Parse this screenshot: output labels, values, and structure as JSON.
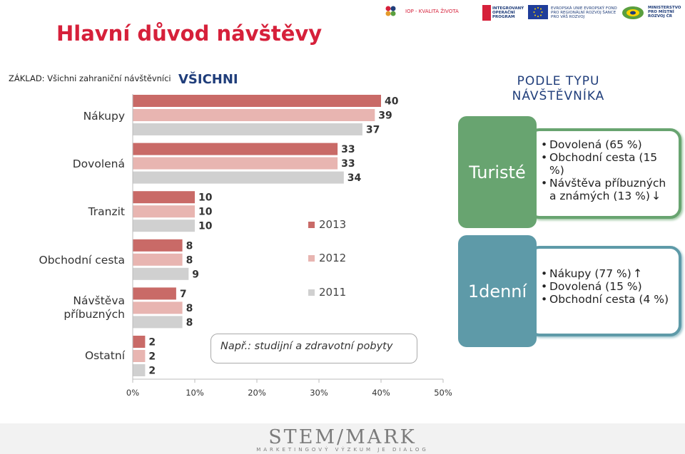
{
  "page": {
    "title": "Hlavní důvod návštěvy",
    "basis": "ZÁKLAD: Všichni zahraniční návštěvníci",
    "section_all": "VŠICHNI",
    "note": "Např.: studijní a zdravotní pobyty",
    "logos": {
      "iop": "IOP - KVALITA ŽIVOTA",
      "integrated": "INTEGROVANÝ OPERAČNÍ PROGRAM",
      "eu": "EVROPSKÁ UNIE EVROPSKÝ FOND PRO REGIONÁLNÍ ROZVOJ ŠANCE PRO VÁŠ ROZVOJ",
      "mmr": "MINISTERSTVO PRO MÍSTNÍ ROZVOJ ČR"
    },
    "footer_brand": "STEM/MARK",
    "footer_tagline": "MARKETINGOVÝ VÝZKUM JE DIALOG"
  },
  "colors": {
    "title": "#d6203a",
    "navy": "#1f3d7a",
    "s2013": "#c96a67",
    "s2012": "#e8b5b1",
    "s2011": "#d0d0d0",
    "green": "#68a470",
    "teal": "#5e9aa8"
  },
  "chart_data": {
    "type": "bar",
    "orientation": "horizontal",
    "categories": [
      "Nákupy",
      "Dovolená",
      "Tranzit",
      "Obchodní cesta",
      "Návštěva příbuzných",
      "Ostatní"
    ],
    "series": [
      {
        "name": "2013",
        "values": [
          40,
          33,
          10,
          8,
          7,
          2
        ]
      },
      {
        "name": "2012",
        "values": [
          39,
          33,
          10,
          8,
          8,
          2
        ]
      },
      {
        "name": "2011",
        "values": [
          37,
          34,
          10,
          9,
          8,
          2
        ]
      }
    ],
    "xlim": [
      0,
      50
    ],
    "xticks": [
      "0%",
      "10%",
      "20%",
      "30%",
      "40%",
      "50%"
    ],
    "grid": false,
    "legend_position": "center"
  },
  "segments": {
    "title_line1": "PODLE TYPU",
    "title_line2": "NÁVŠTĚVNÍKA",
    "tourists": {
      "label": "Turisté",
      "items": [
        "Dovolená (65 %)",
        "Obchodní cesta (15 %)",
        "Návštěva příbuzných a známých (13 %)"
      ],
      "trend_icon": "arrow-down-icon"
    },
    "oneday": {
      "label": "1denní",
      "items": [
        "Nákupy (77 %)",
        "Dovolená (15 %)",
        "Obchodní cesta (4 %)"
      ],
      "trend_icon": "arrow-up-icon"
    }
  }
}
